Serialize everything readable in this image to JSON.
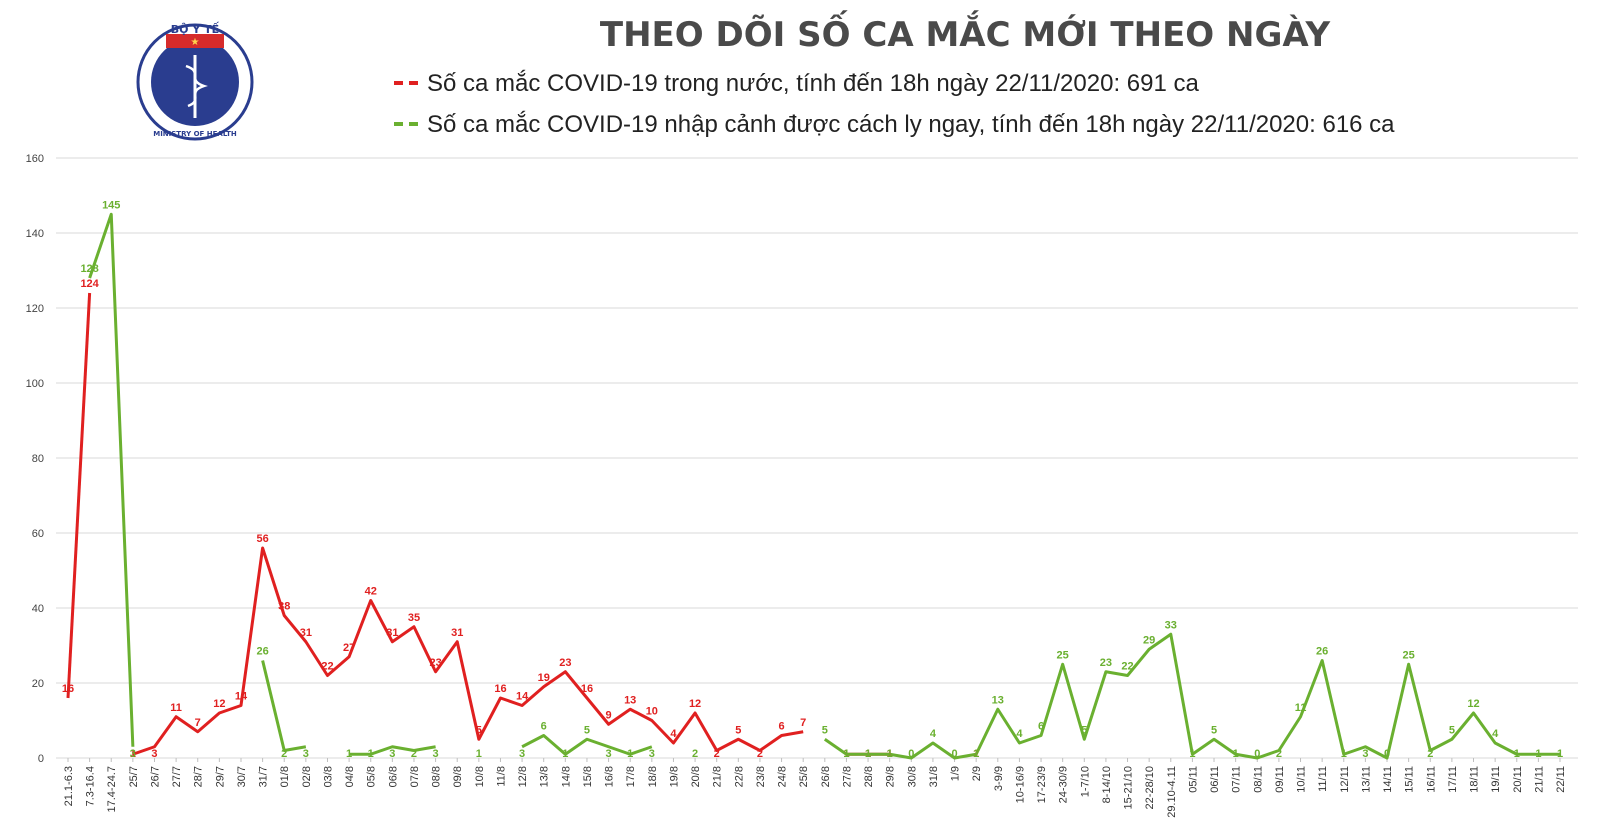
{
  "header": {
    "title": "THEO DÕI SỐ CA MẮC MỚI THEO NGÀY",
    "logo_top": "BỘ Y TẾ",
    "logo_bottom": "MINISTRY OF HEALTH"
  },
  "legend": [
    {
      "text": "Số ca mắc COVID-19 trong nước, tính đến 18h ngày 22/11/2020: 691 ca",
      "color": "#e02020"
    },
    {
      "text": "Số ca mắc COVID-19 nhập cảnh được cách ly ngay, tính đến 18h ngày 22/11/2020: 616 ca",
      "color": "#6ab030"
    }
  ],
  "chart_data": {
    "type": "line",
    "title": "THEO DÕI SỐ CA MẮC MỚI THEO NGÀY",
    "ylim": [
      0,
      160
    ],
    "yticks": [
      0,
      20,
      40,
      60,
      80,
      100,
      120,
      140,
      160
    ],
    "grid": true,
    "categories": [
      "21.1-6.3",
      "7.3-16.4",
      "17.4-24.7",
      "25/7",
      "26/7",
      "27/7",
      "28/7",
      "29/7",
      "30/7",
      "31/7",
      "01/8",
      "02/8",
      "03/8",
      "04/8",
      "05/8",
      "06/8",
      "07/8",
      "08/8",
      "09/8",
      "10/8",
      "11/8",
      "12/8",
      "13/8",
      "14/8",
      "15/8",
      "16/8",
      "17/8",
      "18/8",
      "19/8",
      "20/8",
      "21/8",
      "22/8",
      "23/8",
      "24/8",
      "25/8",
      "26/8",
      "27/8",
      "28/8",
      "29/8",
      "30/8",
      "31/8",
      "1/9",
      "2/9",
      "3-9/9",
      "10-16/9",
      "17-23/9",
      "24-30/9",
      "1-7/10",
      "8-14/10",
      "15-21/10",
      "22-28/10",
      "29.10-4.11",
      "05/11",
      "06/11",
      "07/11",
      "08/11",
      "09/11",
      "10/11",
      "11/11",
      "12/11",
      "13/11",
      "14/11",
      "15/11",
      "16/11",
      "17/11",
      "18/11",
      "19/11",
      "20/11",
      "21/11",
      "22/11"
    ],
    "series": [
      {
        "color": "#e02020",
        "values": [
          16,
          124,
          null,
          1,
          3,
          11,
          7,
          12,
          14,
          56,
          38,
          31,
          22,
          27,
          42,
          31,
          35,
          23,
          31,
          5,
          16,
          14,
          19,
          23,
          16,
          9,
          13,
          10,
          4,
          12,
          2,
          5,
          2,
          6,
          7,
          null,
          1,
          1,
          1,
          null,
          null,
          null,
          1,
          null,
          null,
          null,
          null,
          null,
          null,
          null,
          null,
          null,
          null,
          null,
          null,
          null,
          null,
          null,
          null,
          null,
          null,
          null,
          null,
          null,
          null,
          null,
          null,
          null,
          null,
          null
        ]
      },
      {
        "color": "#6ab030",
        "values": [
          null,
          128,
          145,
          3,
          null,
          null,
          null,
          null,
          null,
          26,
          2,
          3,
          null,
          1,
          1,
          3,
          2,
          3,
          null,
          1,
          null,
          3,
          6,
          1,
          5,
          3,
          1,
          3,
          null,
          2,
          null,
          null,
          null,
          null,
          null,
          5,
          1,
          1,
          1,
          0,
          4,
          0,
          1,
          13,
          4,
          6,
          25,
          5,
          23,
          22,
          29,
          33,
          1,
          5,
          1,
          0,
          2,
          11,
          26,
          1,
          3,
          0,
          25,
          2,
          5,
          12,
          4,
          1,
          1,
          1
        ]
      }
    ]
  }
}
